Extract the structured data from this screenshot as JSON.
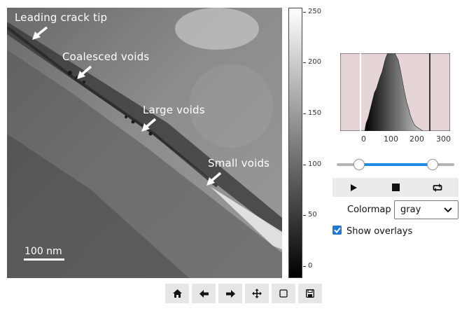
{
  "image": {
    "annotations": [
      "Leading crack tip",
      "Coalesced voids",
      "Large voids",
      "Small voids"
    ],
    "scalebar_label": "100 nm"
  },
  "colorbar": {
    "ticks": [
      "250",
      "200",
      "150",
      "100",
      "50",
      "0"
    ]
  },
  "histogram": {
    "x_ticks": [
      "0",
      "100",
      "200",
      "300"
    ]
  },
  "contrast_range": {
    "low": 0,
    "high": 255
  },
  "player": {
    "buttons": [
      "play-icon",
      "stop-icon",
      "loop-icon"
    ]
  },
  "colormap": {
    "label": "Colormap",
    "selected": "gray"
  },
  "overlays": {
    "label": "Show overlays",
    "checked": true
  },
  "toolbar": {
    "buttons": [
      "home-icon",
      "back-arrow-icon",
      "forward-arrow-icon",
      "pan-icon",
      "zoom-rect-icon",
      "save-icon"
    ]
  }
}
